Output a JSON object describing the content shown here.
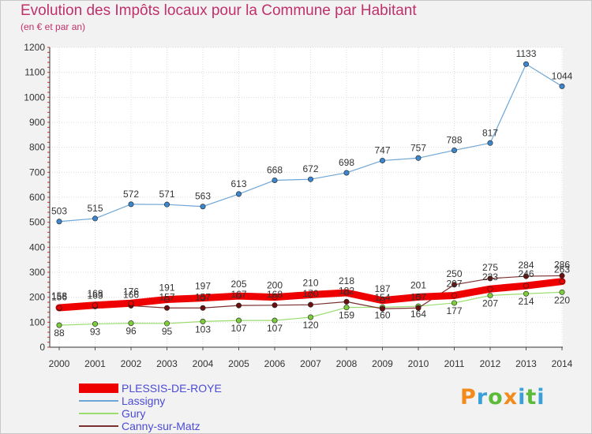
{
  "chart_data": {
    "type": "line",
    "title": "Evolution des Impôts locaux pour la Commune par Habitant",
    "subtitle": "(en € et par an)",
    "xlabel": "",
    "ylabel": "",
    "categories": [
      "2000",
      "2001",
      "2002",
      "2003",
      "2004",
      "2005",
      "2006",
      "2007",
      "2008",
      "2009",
      "2010",
      "2011",
      "2012",
      "2013",
      "2014"
    ],
    "ylim": [
      0,
      1200
    ],
    "yticks": [
      0,
      100,
      200,
      300,
      400,
      500,
      600,
      700,
      800,
      900,
      1000,
      1100,
      1200
    ],
    "grid": true,
    "legend_position": "bottom-left",
    "series": [
      {
        "name": "PLESSIS-DE-ROYE",
        "color": "#ee0000",
        "marker_color": "#ee0000",
        "values": [
          158,
          168,
          176,
          191,
          197,
          205,
          200,
          210,
          218,
          187,
          201,
          207,
          233,
          246,
          263
        ]
      },
      {
        "name": "Lassigny",
        "color": "#6ea6d6",
        "marker_color": "#3d86cc",
        "values": [
          503,
          515,
          572,
          571,
          563,
          613,
          668,
          672,
          698,
          747,
          757,
          788,
          817,
          1133,
          1044
        ]
      },
      {
        "name": "Gury",
        "color": "#9adc6e",
        "marker_color": "#7ccc3c",
        "values": [
          88,
          93,
          96,
          95,
          103,
          107,
          107,
          120,
          159,
          160,
          164,
          177,
          207,
          214,
          220
        ]
      },
      {
        "name": "Canny-sur-Matz",
        "color": "#7a3030",
        "marker_color": "#6a1010",
        "values": [
          156,
          163,
          166,
          157,
          157,
          167,
          168,
          170,
          182,
          154,
          157,
          250,
          275,
          284,
          286
        ]
      }
    ]
  },
  "logo": {
    "letters": [
      "P",
      "r",
      "o",
      "x",
      "i",
      "t",
      "i"
    ],
    "colors": [
      "#f28a1c",
      "#3aa0d8",
      "#5dbb3c",
      "#f28a1c",
      "#3aa0d8",
      "#5dbb3c",
      "#3aa0d8"
    ]
  }
}
